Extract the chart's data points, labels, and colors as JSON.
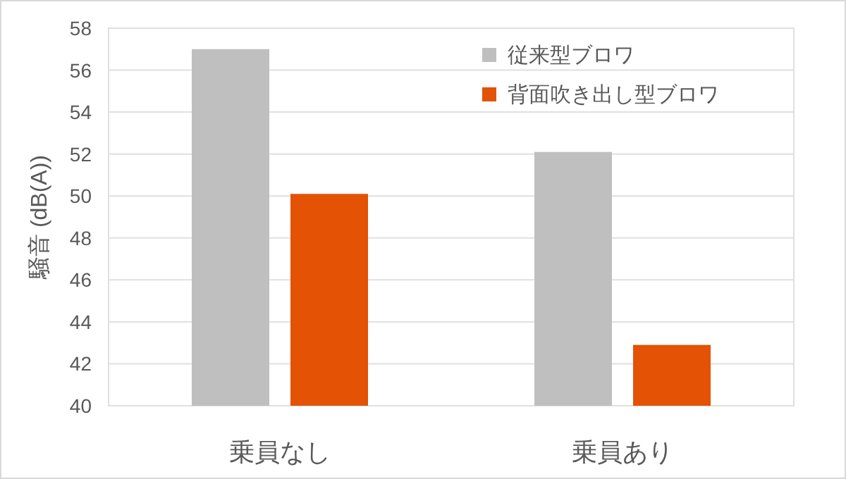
{
  "chart_data": {
    "type": "bar",
    "ylabel": "騒音 (dB(A))",
    "categories": [
      "乗員なし",
      "乗員あり"
    ],
    "series": [
      {
        "name": "従来型ブロワ",
        "color": "#bfbfbf",
        "values": [
          57.0,
          52.1
        ]
      },
      {
        "name": "背面吹き出し型ブロワ",
        "color": "#e35205",
        "values": [
          50.1,
          42.9
        ]
      }
    ],
    "ylim": [
      40,
      58
    ],
    "yticks": [
      40,
      42,
      44,
      46,
      48,
      50,
      52,
      54,
      56,
      58
    ],
    "grid": "y",
    "legend": "top right"
  }
}
